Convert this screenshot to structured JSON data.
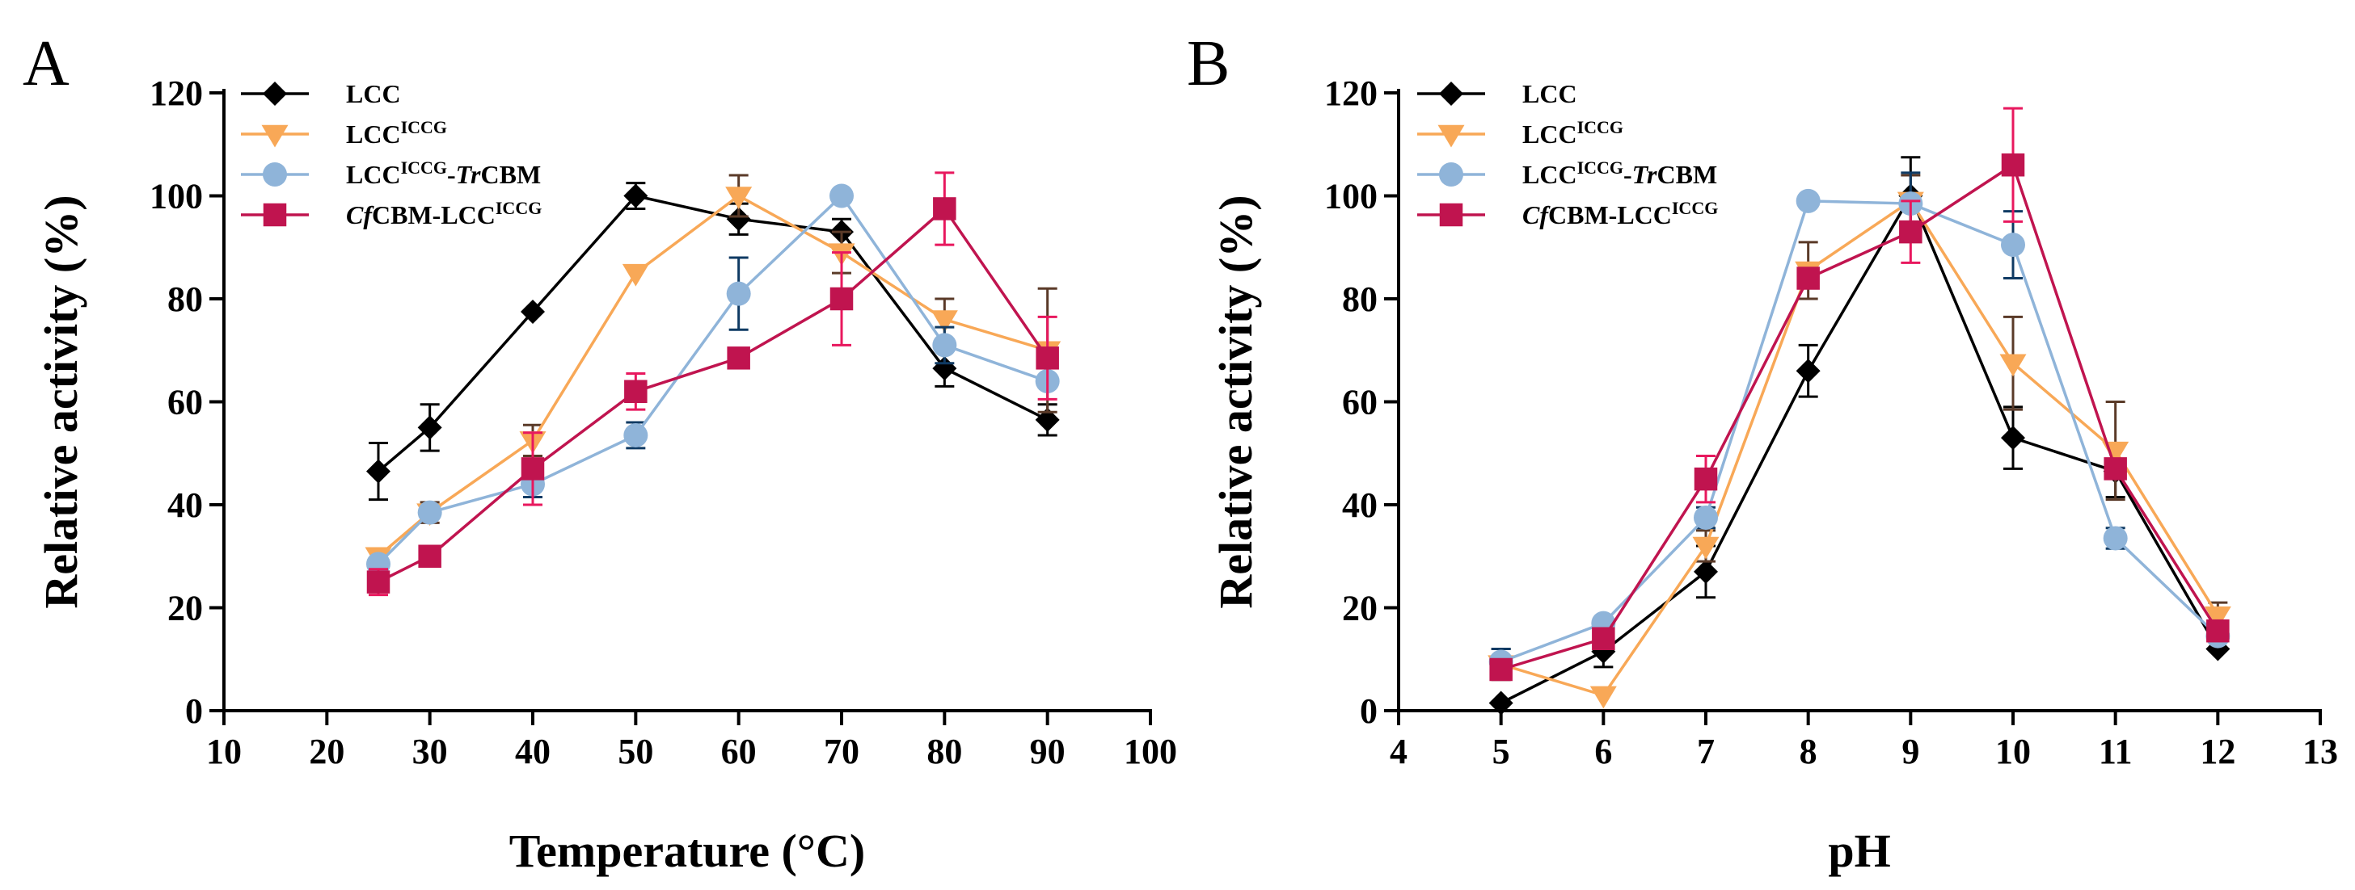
{
  "chart_data": [
    {
      "type": "line",
      "panel": "A",
      "xlabel": "Temperature (°C)",
      "ylabel": "Relative activity (%)",
      "xlim": [
        10,
        100
      ],
      "ylim": [
        0,
        120
      ],
      "xticks": [
        10,
        20,
        30,
        40,
        50,
        60,
        70,
        80,
        90,
        100
      ],
      "yticks": [
        0,
        20,
        40,
        60,
        80,
        100,
        120
      ],
      "legend_position": "top-left",
      "series": [
        {
          "name": "LCC",
          "legend": {
            "base": "LCC",
            "sup": "",
            "mid": "",
            "ital": "",
            "tail": ""
          },
          "color": "#000000",
          "errcolor": "#000000",
          "marker": "diamond",
          "x": [
            25,
            30,
            40,
            50,
            60,
            70,
            80,
            90
          ],
          "y": [
            46.5,
            55,
            77.5,
            100,
            95.5,
            93,
            66.5,
            56.5
          ],
          "err": [
            5.5,
            4.5,
            0,
            2.5,
            3,
            2.5,
            3.5,
            3
          ]
        },
        {
          "name": "LCC^ICCG",
          "legend": {
            "base": "LCC",
            "sup": "ICCG",
            "mid": "",
            "ital": "",
            "tail": ""
          },
          "color": "#F8A857",
          "errcolor": "#5A3A28",
          "marker": "triangle-down",
          "x": [
            25,
            30,
            40,
            50,
            60,
            70,
            80,
            90
          ],
          "y": [
            30,
            38.5,
            52.5,
            85,
            100,
            89,
            76,
            70
          ],
          "err": [
            0,
            2,
            3,
            0,
            4,
            4,
            4,
            12
          ]
        },
        {
          "name": "LCC^ICCG-TrCBM",
          "legend": {
            "base": "LCC",
            "sup": "ICCG",
            "mid": "-",
            "ital": "Tr",
            "tail": "CBM"
          },
          "color": "#8FB4D9",
          "errcolor": "#0F3A63",
          "marker": "circle",
          "x": [
            25,
            30,
            40,
            50,
            60,
            70,
            80,
            90
          ],
          "y": [
            28.5,
            38.5,
            44,
            53.5,
            81,
            100,
            71,
            64
          ],
          "err": [
            0,
            0,
            2.5,
            2.5,
            7,
            0,
            3.5,
            0
          ]
        },
        {
          "name": "CfCBM-LCC^ICCG",
          "legend": {
            "base": "",
            "sup": "ICCG",
            "mid": "",
            "ital": "Cf",
            "tail": "CBM-LCC"
          },
          "color": "#C0144F",
          "errcolor": "#E8185E",
          "marker": "square",
          "x": [
            25,
            30,
            40,
            50,
            60,
            70,
            80,
            90
          ],
          "y": [
            25,
            30,
            47,
            62,
            68.5,
            80,
            97.5,
            68.5
          ],
          "err": [
            2.5,
            0,
            7,
            3.5,
            0,
            9,
            7,
            8
          ]
        }
      ]
    },
    {
      "type": "line",
      "panel": "B",
      "xlabel": "pH",
      "ylabel": "Relative activity (%)",
      "xlim": [
        4,
        13
      ],
      "ylim": [
        0,
        120
      ],
      "xticks": [
        4,
        5,
        6,
        7,
        8,
        9,
        10,
        11,
        12,
        13
      ],
      "yticks": [
        0,
        20,
        40,
        60,
        80,
        100,
        120
      ],
      "legend_position": "top-left",
      "series": [
        {
          "name": "LCC",
          "legend": {
            "base": "LCC",
            "sup": "",
            "mid": "",
            "ital": "",
            "tail": ""
          },
          "color": "#000000",
          "errcolor": "#000000",
          "marker": "diamond",
          "x": [
            5,
            6,
            7,
            8,
            9,
            10,
            11,
            12
          ],
          "y": [
            1.5,
            11.5,
            27,
            66,
            100,
            53,
            46.5,
            12
          ],
          "err": [
            0,
            3,
            5,
            5,
            7.5,
            6,
            5,
            0
          ]
        },
        {
          "name": "LCC^ICCG",
          "legend": {
            "base": "LCC",
            "sup": "ICCG",
            "mid": "",
            "ital": "",
            "tail": ""
          },
          "color": "#F8A857",
          "errcolor": "#5A3A28",
          "marker": "triangle-down",
          "x": [
            5,
            6,
            7,
            8,
            9,
            10,
            11,
            12
          ],
          "y": [
            9,
            3,
            32,
            85.5,
            99,
            67.5,
            50.5,
            18.5
          ],
          "err": [
            3,
            0,
            3,
            5.5,
            5,
            9,
            9.5,
            2.5
          ]
        },
        {
          "name": "LCC^ICCG-TrCBM",
          "legend": {
            "base": "LCC",
            "sup": "ICCG",
            "mid": "-",
            "ital": "Tr",
            "tail": "CBM"
          },
          "color": "#8FB4D9",
          "errcolor": "#0F3A63",
          "marker": "circle",
          "x": [
            5,
            6,
            7,
            8,
            9,
            10,
            11,
            12
          ],
          "y": [
            9.5,
            17,
            37.5,
            99,
            98.5,
            90.5,
            33.5,
            14.5
          ],
          "err": [
            2.5,
            0,
            2,
            0,
            6,
            6.5,
            2,
            1
          ]
        },
        {
          "name": "CfCBM-LCC^ICCG",
          "legend": {
            "base": "",
            "sup": "ICCG",
            "mid": "",
            "ital": "Cf",
            "tail": "CBM-LCC"
          },
          "color": "#C0144F",
          "errcolor": "#E8185E",
          "marker": "square",
          "x": [
            5,
            6,
            7,
            8,
            9,
            10,
            11,
            12
          ],
          "y": [
            8,
            14,
            45,
            84,
            93,
            106,
            47,
            15.5
          ],
          "err": [
            0,
            0,
            4.5,
            0,
            6,
            11,
            0,
            0
          ]
        }
      ]
    }
  ]
}
